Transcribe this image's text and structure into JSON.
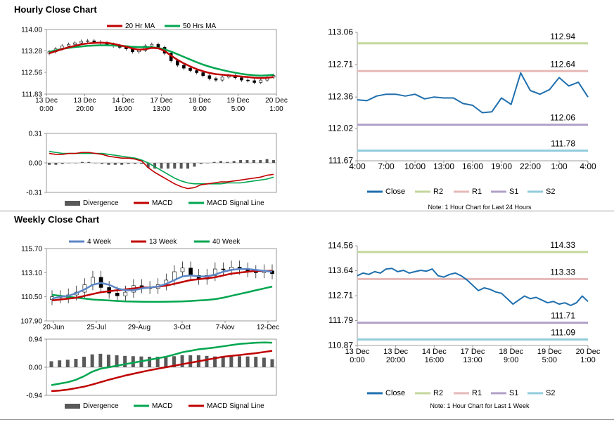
{
  "sections": {
    "hourly_title": "Hourly Close Chart",
    "weekly_title": "Weekly Close Chart"
  },
  "colors": {
    "ma20": "#c00000",
    "ma50": "#00a650",
    "close": "#1f6fae",
    "r2": "#c4d79b",
    "r1": "#e6b9b8",
    "s1": "#b1a0c7",
    "s2": "#92cddc",
    "divergence": "#595959",
    "week4": "#5b86c5",
    "week13": "#c00000",
    "week40": "#00a650"
  },
  "chart_data": [
    {
      "id": "hourly_price",
      "type": "candlestick",
      "legend": [
        "20 Hr MA",
        "50 Hrs MA"
      ],
      "y_ticks": [
        "114.00",
        "113.28",
        "112.56",
        "111.83"
      ],
      "ylim": [
        111.83,
        114.0
      ],
      "x_ticks": [
        "13 Dec\n0:00",
        "13 Dec\n20:00",
        "14 Dec\n16:00",
        "17 Dec\n13:00",
        "18 Dec\n9:00",
        "19 Dec\n5:00",
        "20 Dec\n1:00"
      ],
      "close": [
        113.25,
        113.35,
        113.45,
        113.5,
        113.55,
        113.6,
        113.62,
        113.58,
        113.55,
        113.5,
        113.45,
        113.4,
        113.35,
        113.25,
        113.3,
        113.45,
        113.5,
        113.4,
        113.2,
        112.95,
        112.8,
        112.7,
        112.62,
        112.55,
        112.45,
        112.35,
        112.3,
        112.4,
        112.45,
        112.38,
        112.3,
        112.28,
        112.22,
        112.3,
        112.4,
        112.45
      ],
      "ma20": [
        113.2,
        113.27,
        113.34,
        113.4,
        113.45,
        113.5,
        113.53,
        113.55,
        113.56,
        113.55,
        113.52,
        113.47,
        113.42,
        113.36,
        113.32,
        113.34,
        113.38,
        113.37,
        113.28,
        113.12,
        112.98,
        112.86,
        112.76,
        112.67,
        112.6,
        112.54,
        112.5,
        112.48,
        112.46,
        112.44,
        112.42,
        112.4,
        112.38,
        112.37,
        112.38,
        112.4
      ],
      "ma50": [
        113.25,
        113.3,
        113.35,
        113.38,
        113.41,
        113.43,
        113.45,
        113.46,
        113.47,
        113.47,
        113.46,
        113.45,
        113.44,
        113.42,
        113.41,
        113.41,
        113.4,
        113.38,
        113.33,
        113.26,
        113.17,
        113.08,
        112.99,
        112.9,
        112.82,
        112.75,
        112.69,
        112.64,
        112.59,
        112.55,
        112.51,
        112.48,
        112.46,
        112.45,
        112.46,
        112.48
      ]
    },
    {
      "id": "hourly_macd",
      "type": "line+bar",
      "legend": [
        "Divergence",
        "MACD",
        "MACD Signal Line"
      ],
      "y_ticks": [
        "0.31",
        "0.00",
        "-0.31"
      ],
      "ylim": [
        -0.31,
        0.31
      ],
      "macd": [
        0.1,
        0.09,
        0.09,
        0.1,
        0.1,
        0.11,
        0.11,
        0.1,
        0.09,
        0.07,
        0.06,
        0.05,
        0.05,
        0.04,
        0.02,
        -0.05,
        -0.1,
        -0.14,
        -0.18,
        -0.22,
        -0.25,
        -0.27,
        -0.26,
        -0.23,
        -0.22,
        -0.21,
        -0.2,
        -0.2,
        -0.19,
        -0.18,
        -0.17,
        -0.16,
        -0.15,
        -0.13,
        -0.12
      ],
      "signal": [
        0.12,
        0.11,
        0.1,
        0.1,
        0.1,
        0.1,
        0.1,
        0.1,
        0.1,
        0.09,
        0.08,
        0.07,
        0.06,
        0.05,
        0.03,
        0.0,
        -0.04,
        -0.08,
        -0.12,
        -0.16,
        -0.19,
        -0.21,
        -0.22,
        -0.22,
        -0.22,
        -0.22,
        -0.22,
        -0.21,
        -0.21,
        -0.21,
        -0.2,
        -0.19,
        -0.18,
        -0.17,
        -0.15
      ],
      "divergence": [
        -0.02,
        -0.02,
        -0.01,
        0.0,
        0.0,
        0.01,
        0.01,
        0.0,
        -0.01,
        -0.02,
        -0.02,
        -0.02,
        -0.01,
        -0.01,
        -0.01,
        -0.05,
        -0.06,
        -0.06,
        -0.06,
        -0.06,
        -0.06,
        -0.06,
        -0.04,
        -0.01,
        0.0,
        0.01,
        0.02,
        0.01,
        0.02,
        0.03,
        0.03,
        0.03,
        0.03,
        0.04,
        0.03
      ]
    },
    {
      "id": "hourly_close_24h",
      "type": "line",
      "y_ticks": [
        "113.06",
        "112.71",
        "112.36",
        "112.02",
        "111.67"
      ],
      "ylim": [
        111.67,
        113.06
      ],
      "x_ticks": [
        "4:00",
        "7:00",
        "10:00",
        "13:00",
        "16:00",
        "19:00",
        "22:00",
        "1:00",
        "4:00"
      ],
      "close": [
        112.33,
        112.32,
        112.37,
        112.39,
        112.39,
        112.37,
        112.39,
        112.34,
        112.36,
        112.35,
        112.35,
        112.29,
        112.27,
        112.19,
        112.2,
        112.35,
        112.28,
        112.62,
        112.43,
        112.39,
        112.44,
        112.57,
        112.48,
        112.52,
        112.36
      ],
      "levels": [
        {
          "name": "R2",
          "value": 112.94,
          "label": "112.94"
        },
        {
          "name": "R1",
          "value": 112.64,
          "label": "112.64"
        },
        {
          "name": "S1",
          "value": 112.06,
          "label": "112.06"
        },
        {
          "name": "S2",
          "value": 111.78,
          "label": "111.78"
        }
      ],
      "legend": [
        "Close",
        "R2",
        "R1",
        "S1",
        "S2"
      ],
      "note": "Note: 1 Hour Chart for Last 24 Hours"
    },
    {
      "id": "weekly_price",
      "type": "candlestick",
      "legend": [
        "4 Week",
        "13 Week",
        "40 Week"
      ],
      "y_ticks": [
        "115.70",
        "113.10",
        "110.50",
        "107.90"
      ],
      "ylim": [
        107.9,
        115.7
      ],
      "x_ticks": [
        "20-Jun",
        "25-Jul",
        "29-Aug",
        "3-Oct",
        "7-Nov",
        "12-Dec"
      ],
      "close": [
        110.5,
        110.4,
        110.7,
        111.0,
        111.8,
        112.6,
        111.5,
        110.9,
        110.6,
        111.0,
        111.7,
        111.5,
        111.4,
        111.8,
        112.3,
        113.2,
        113.6,
        112.8,
        112.4,
        112.8,
        113.5,
        113.4,
        113.7,
        113.5,
        113.2,
        113.1,
        113.3,
        113.0
      ],
      "week4": [
        110.3,
        110.5,
        110.6,
        110.9,
        111.3,
        111.8,
        112.0,
        111.8,
        111.4,
        111.2,
        111.2,
        111.4,
        111.5,
        111.6,
        111.9,
        112.3,
        112.7,
        112.8,
        112.7,
        112.7,
        112.9,
        113.2,
        113.4,
        113.5,
        113.5,
        113.4,
        113.3,
        113.2
      ],
      "week13": [
        110.1,
        110.2,
        110.3,
        110.4,
        110.6,
        110.8,
        111.0,
        111.1,
        111.2,
        111.3,
        111.4,
        111.5,
        111.5,
        111.6,
        111.7,
        111.9,
        112.1,
        112.3,
        112.4,
        112.5,
        112.6,
        112.8,
        113.0,
        113.1,
        113.2,
        113.3,
        113.3,
        113.3
      ],
      "week40": [
        110.7,
        110.6,
        110.5,
        110.4,
        110.3,
        110.2,
        110.15,
        110.1,
        110.05,
        110.0,
        109.98,
        109.96,
        109.95,
        109.95,
        109.96,
        109.98,
        110.0,
        110.05,
        110.1,
        110.15,
        110.25,
        110.4,
        110.6,
        110.8,
        111.0,
        111.2,
        111.4,
        111.6
      ]
    },
    {
      "id": "weekly_macd",
      "type": "line+bar",
      "legend": [
        "Divergence",
        "MACD",
        "MACD Signal Line"
      ],
      "y_ticks": [
        "0.94",
        "0.00",
        "-0.94"
      ],
      "ylim": [
        -0.94,
        0.94
      ],
      "macd": [
        -0.6,
        -0.55,
        -0.5,
        -0.42,
        -0.3,
        -0.15,
        -0.05,
        0.0,
        0.05,
        0.1,
        0.15,
        0.2,
        0.25,
        0.3,
        0.35,
        0.42,
        0.5,
        0.55,
        0.6,
        0.63,
        0.66,
        0.7,
        0.74,
        0.78,
        0.8,
        0.82,
        0.83,
        0.82
      ],
      "signal": [
        -0.8,
        -0.78,
        -0.75,
        -0.7,
        -0.65,
        -0.58,
        -0.5,
        -0.42,
        -0.35,
        -0.28,
        -0.22,
        -0.16,
        -0.1,
        -0.05,
        0.0,
        0.05,
        0.1,
        0.15,
        0.2,
        0.25,
        0.3,
        0.35,
        0.38,
        0.41,
        0.44,
        0.47,
        0.51,
        0.55
      ],
      "divergence": [
        0.2,
        0.23,
        0.25,
        0.28,
        0.35,
        0.43,
        0.45,
        0.42,
        0.4,
        0.38,
        0.37,
        0.36,
        0.35,
        0.35,
        0.35,
        0.37,
        0.4,
        0.4,
        0.4,
        0.38,
        0.36,
        0.35,
        0.36,
        0.37,
        0.36,
        0.35,
        0.32,
        0.27
      ]
    },
    {
      "id": "weekly_close_1w",
      "type": "line",
      "y_ticks": [
        "114.56",
        "113.64",
        "112.71",
        "111.79",
        "110.87"
      ],
      "ylim": [
        110.87,
        114.56
      ],
      "x_ticks": [
        "13 Dec\n0:00",
        "13 Dec\n20:00",
        "14 Dec\n16:00",
        "17 Dec\n13:00",
        "18 Dec\n9:00",
        "19 Dec\n5:00",
        "20 Dec\n1:00"
      ],
      "close": [
        113.45,
        113.55,
        113.5,
        113.6,
        113.55,
        113.7,
        113.72,
        113.6,
        113.65,
        113.55,
        113.6,
        113.65,
        113.62,
        113.7,
        113.45,
        113.4,
        113.5,
        113.55,
        113.45,
        113.3,
        113.1,
        112.9,
        113.0,
        112.95,
        112.85,
        112.8,
        112.6,
        112.4,
        112.55,
        112.7,
        112.6,
        112.65,
        112.55,
        112.45,
        112.5,
        112.4,
        112.45,
        112.35,
        112.45,
        112.7,
        112.5
      ],
      "levels": [
        {
          "name": "R2",
          "value": 114.33,
          "label": "114.33"
        },
        {
          "name": "R1",
          "value": 113.33,
          "label": "113.33"
        },
        {
          "name": "S1",
          "value": 111.71,
          "label": "111.71"
        },
        {
          "name": "S2",
          "value": 111.09,
          "label": "111.09"
        }
      ],
      "legend": [
        "Close",
        "R2",
        "R1",
        "S1",
        "S2"
      ],
      "note": "Note: 1 Hour Chart for Last 1 Week"
    }
  ]
}
